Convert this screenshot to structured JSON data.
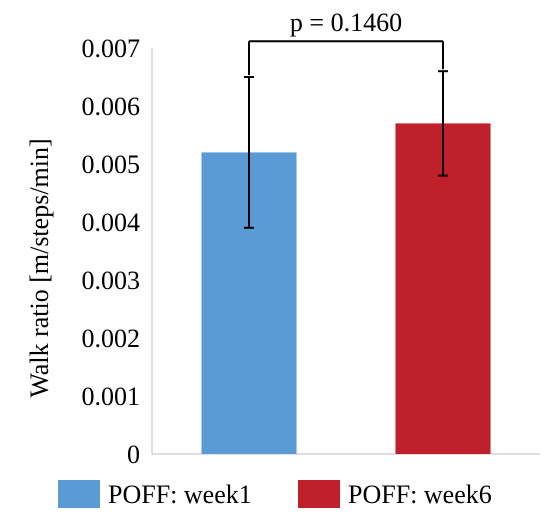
{
  "chart_data": {
    "type": "bar",
    "categories": [
      "POFF: week1",
      "POFF: week6"
    ],
    "series": [
      {
        "name": "POFF: week1",
        "value": 0.0052,
        "error_low": 0.0039,
        "error_high": 0.0065,
        "color": "#5b9bd5"
      },
      {
        "name": "POFF: week6",
        "value": 0.0057,
        "error_low": 0.0048,
        "error_high": 0.0066,
        "color": "#c0202b"
      }
    ],
    "ylabel": "Walk ratio [m/steps/min]",
    "ylim": [
      0,
      0.007
    ],
    "yticks": [
      "0",
      "0.001",
      "0.002",
      "0.003",
      "0.004",
      "0.005",
      "0.006",
      "0.007"
    ],
    "annotation": "p = 0.1460",
    "legend_position": "bottom",
    "grid": false
  }
}
